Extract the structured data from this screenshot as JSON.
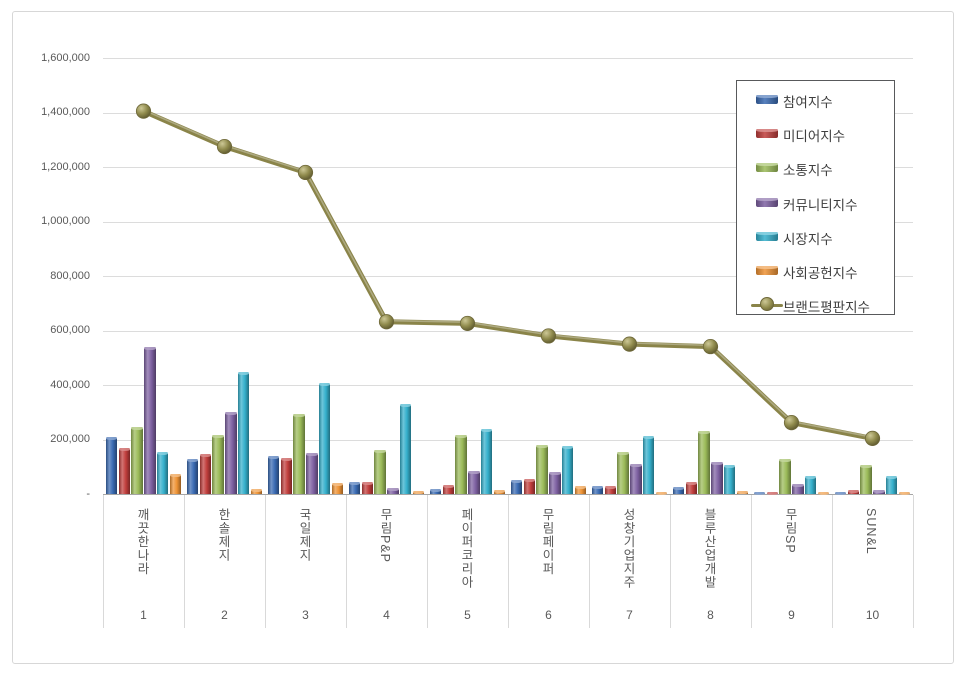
{
  "chart_data": {
    "type": "bar",
    "combo": "grouped 3D bars + line overlay",
    "title": "",
    "xlabel": "",
    "ylabel": "",
    "categories": [
      "깨끗한나라",
      "한솔제지",
      "국일제지",
      "무림P&P",
      "페이퍼코리아",
      "무림페이퍼",
      "성창기업지주",
      "블루산업개발",
      "무림SP",
      "SUN&L"
    ],
    "ranks": [
      "1",
      "2",
      "3",
      "4",
      "5",
      "6",
      "7",
      "8",
      "9",
      "10"
    ],
    "bar_series": [
      {
        "name": "참여지수",
        "color": "#3a6bb3",
        "values": [
          210000,
          128000,
          140000,
          43000,
          18000,
          51000,
          28000,
          27000,
          9000,
          6000
        ]
      },
      {
        "name": "미디어지수",
        "color": "#c03e3c",
        "values": [
          168000,
          147000,
          132000,
          45000,
          33000,
          54000,
          29000,
          45000,
          9000,
          13000
        ]
      },
      {
        "name": "소통지수",
        "color": "#9bbb59",
        "values": [
          245000,
          215000,
          295000,
          161000,
          216000,
          179000,
          155000,
          230000,
          128000,
          105000
        ]
      },
      {
        "name": "커뮤니티지수",
        "color": "#7e61a2",
        "values": [
          541000,
          300000,
          152000,
          21000,
          85000,
          82000,
          110000,
          119000,
          37000,
          14000
        ]
      },
      {
        "name": "시장지수",
        "color": "#35b0cc",
        "values": [
          155000,
          447000,
          407000,
          331000,
          240000,
          175000,
          213000,
          105000,
          66000,
          65000
        ]
      },
      {
        "name": "사회공헌지수",
        "color": "#ee9335",
        "values": [
          72000,
          18000,
          42000,
          12000,
          13000,
          29000,
          6000,
          12000,
          5000,
          5000
        ]
      }
    ],
    "line_series": {
      "name": "브랜드평판지수",
      "color": "#8a8449",
      "values": [
        1405000,
        1275000,
        1180000,
        632000,
        626000,
        580000,
        550000,
        541000,
        262000,
        204000
      ]
    },
    "y_axis": {
      "min": 0,
      "max": 1600000,
      "step": 200000,
      "ticks": [
        "-",
        "200,000",
        "400,000",
        "600,000",
        "800,000",
        "1,000,000",
        "1,200,000",
        "1,400,000",
        "1,600,000"
      ]
    },
    "grid": true,
    "legend_position": "top-right",
    "legend_entries": [
      "참여지수",
      "미디어지수",
      "소통지수",
      "커뮤니티지수",
      "시장지수",
      "사회공헌지수",
      "브랜드평판지수"
    ]
  }
}
